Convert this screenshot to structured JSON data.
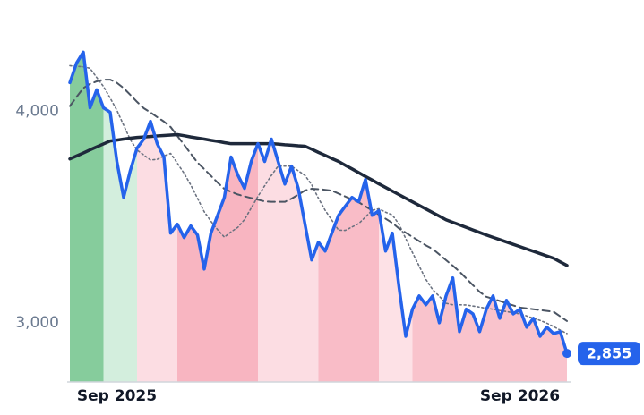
{
  "chart_data": {
    "type": "line",
    "categories": [
      null,
      null,
      null,
      null,
      null,
      null,
      null,
      "Sep 2025",
      null,
      null,
      null,
      null,
      null,
      null,
      null,
      null,
      null,
      null,
      null,
      null,
      null,
      null,
      null,
      null,
      null,
      null,
      null,
      null,
      null,
      null,
      null,
      null,
      null,
      null,
      null,
      null,
      null,
      null,
      null,
      null,
      null,
      null,
      null,
      null,
      null,
      null,
      null,
      null,
      null,
      null,
      null,
      null,
      null,
      null,
      null,
      null,
      null,
      null,
      null,
      null,
      null,
      null,
      null,
      null,
      null,
      null,
      null,
      "Sep 2026",
      null,
      null,
      null,
      null,
      null,
      null,
      null
    ],
    "ylim": [
      2720,
      4400
    ],
    "yticks": [
      {
        "value": 3000,
        "label": "3,000"
      },
      {
        "value": 4000,
        "label": "4,000"
      }
    ],
    "grid": false,
    "series": [
      {
        "color": "#2563eb",
        "style": "bold",
        "values": [
          4136,
          4229,
          4280,
          4017,
          4102,
          4017,
          3996,
          3763,
          3593,
          3720,
          3826,
          3869,
          3953,
          3847,
          3784,
          3424,
          3466,
          3403,
          3458,
          3415,
          3254,
          3424,
          3508,
          3593,
          3784,
          3699,
          3636,
          3763,
          3847,
          3763,
          3869,
          3763,
          3656,
          3741,
          3636,
          3466,
          3297,
          3381,
          3339,
          3424,
          3508,
          3551,
          3593,
          3572,
          3678,
          3508,
          3530,
          3339,
          3424,
          3169,
          2936,
          3064,
          3127,
          3085,
          3127,
          3000,
          3127,
          3212,
          2958,
          3064,
          3042,
          2958,
          3064,
          3127,
          3021,
          3106,
          3042,
          3064,
          2979,
          3021,
          2936,
          2979,
          2949,
          2958,
          2855
        ],
        "value_labels": [
          null,
          null,
          null,
          null,
          null,
          null,
          null,
          null,
          null,
          null,
          null,
          null,
          null,
          null,
          null,
          null,
          null,
          null,
          null,
          null,
          null,
          null,
          null,
          null,
          null,
          null,
          null,
          null,
          null,
          null,
          null,
          null,
          null,
          null,
          null,
          null,
          null,
          null,
          null,
          null,
          null,
          null,
          null,
          null,
          null,
          null,
          null,
          null,
          null,
          null,
          null,
          null,
          null,
          null,
          null,
          null,
          null,
          null,
          null,
          null,
          null,
          null,
          null,
          null,
          null,
          null,
          null,
          null,
          null,
          null,
          null,
          null,
          null,
          null,
          "2,855"
        ]
      },
      {
        "color": "#1e293b",
        "style": "bold",
        "values": [
          3775,
          3789,
          3803,
          3818,
          3832,
          3846,
          3860,
          3864,
          3869,
          3873,
          3877,
          3879,
          3881,
          3884,
          3886,
          3888,
          3890,
          3885,
          3879,
          3874,
          3869,
          3863,
          3858,
          3852,
          3847,
          3847,
          3847,
          3847,
          3847,
          3847,
          3847,
          3845,
          3842,
          3840,
          3837,
          3835,
          3821,
          3806,
          3792,
          3777,
          3763,
          3745,
          3728,
          3710,
          3692,
          3675,
          3657,
          3640,
          3623,
          3606,
          3589,
          3572,
          3555,
          3538,
          3521,
          3504,
          3487,
          3475,
          3463,
          3451,
          3439,
          3427,
          3415,
          3404,
          3393,
          3382,
          3371,
          3360,
          3349,
          3338,
          3327,
          3316,
          3305,
          3288,
          3271
        ]
      },
      {
        "color": "#4b5563",
        "style": "dashed",
        "values": [
          4025,
          4068,
          4110,
          4130,
          4142,
          4150,
          4150,
          4135,
          4110,
          4078,
          4045,
          4015,
          3995,
          3973,
          3952,
          3926,
          3884,
          3842,
          3800,
          3758,
          3727,
          3695,
          3663,
          3633,
          3620,
          3607,
          3598,
          3590,
          3582,
          3574,
          3572,
          3572,
          3572,
          3587,
          3606,
          3626,
          3634,
          3632,
          3629,
          3625,
          3611,
          3597,
          3583,
          3570,
          3550,
          3531,
          3511,
          3492,
          3472,
          3446,
          3426,
          3406,
          3386,
          3366,
          3349,
          3323,
          3296,
          3270,
          3242,
          3210,
          3178,
          3146,
          3123,
          3113,
          3103,
          3092,
          3082,
          3072,
          3068,
          3064,
          3060,
          3056,
          3052,
          3030,
          3008
        ]
      },
      {
        "color": "#6b7280",
        "style": "dotted",
        "values": [
          4216,
          4213,
          4211,
          4204,
          4160,
          4118,
          4063,
          4005,
          3935,
          3866,
          3817,
          3794,
          3770,
          3773,
          3789,
          3801,
          3755,
          3707,
          3652,
          3589,
          3525,
          3480,
          3440,
          3405,
          3430,
          3451,
          3488,
          3543,
          3598,
          3648,
          3697,
          3741,
          3741,
          3741,
          3719,
          3697,
          3653,
          3589,
          3532,
          3485,
          3438,
          3437,
          3453,
          3469,
          3500,
          3532,
          3539,
          3523,
          3510,
          3466,
          3398,
          3332,
          3268,
          3205,
          3157,
          3125,
          3092,
          3085,
          3085,
          3084,
          3079,
          3074,
          3068,
          3064,
          3058,
          3053,
          3047,
          3042,
          3032,
          3021,
          3011,
          2998,
          2982,
          2965,
          2949
        ]
      }
    ],
    "bands": [
      {
        "from": 0,
        "to": 5,
        "color": "#86cc9c"
      },
      {
        "from": 5,
        "to": 10,
        "color": "#d3eedd"
      },
      {
        "from": 10,
        "to": 16,
        "color": "#fcdde3"
      },
      {
        "from": 16,
        "to": 28,
        "color": "#f8b5c1"
      },
      {
        "from": 28,
        "to": 37,
        "color": "#fcdde3"
      },
      {
        "from": 37,
        "to": 46,
        "color": "#f9bcc7"
      },
      {
        "from": 46,
        "to": 51,
        "color": "#fde1e6"
      },
      {
        "from": 51,
        "to": 74,
        "color": "#f9c3cc"
      }
    ]
  }
}
